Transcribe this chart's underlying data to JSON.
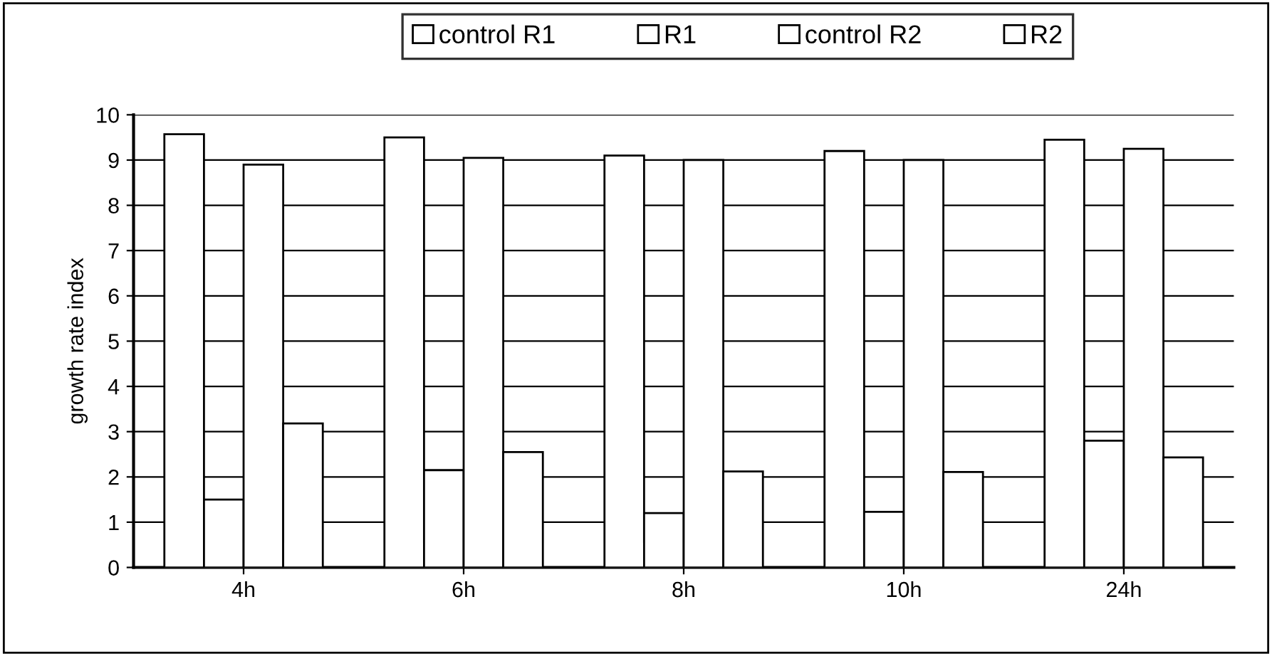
{
  "chart_data": {
    "type": "bar",
    "ylabel": "growth rate index",
    "categories": [
      "4h",
      "6h",
      "8h",
      "10h",
      "24h"
    ],
    "series": [
      {
        "name": "control R1",
        "color": "#ffffff",
        "values": [
          9.57,
          9.5,
          9.1,
          9.2,
          9.45
        ]
      },
      {
        "name": "R1",
        "color": "#ffffff",
        "values": [
          1.5,
          2.15,
          1.2,
          1.23,
          2.8
        ]
      },
      {
        "name": "control R2",
        "color": "#ffffff",
        "values": [
          8.9,
          9.05,
          9.0,
          9.0,
          9.25
        ]
      },
      {
        "name": "R2",
        "color": "#ffffff",
        "values": [
          3.18,
          2.55,
          2.12,
          2.11,
          2.43
        ]
      }
    ],
    "ylim": [
      0,
      10
    ],
    "yticks": [
      0,
      1,
      2,
      3,
      4,
      5,
      6,
      7,
      8,
      9,
      10
    ],
    "grid": "y",
    "legend": "top"
  }
}
